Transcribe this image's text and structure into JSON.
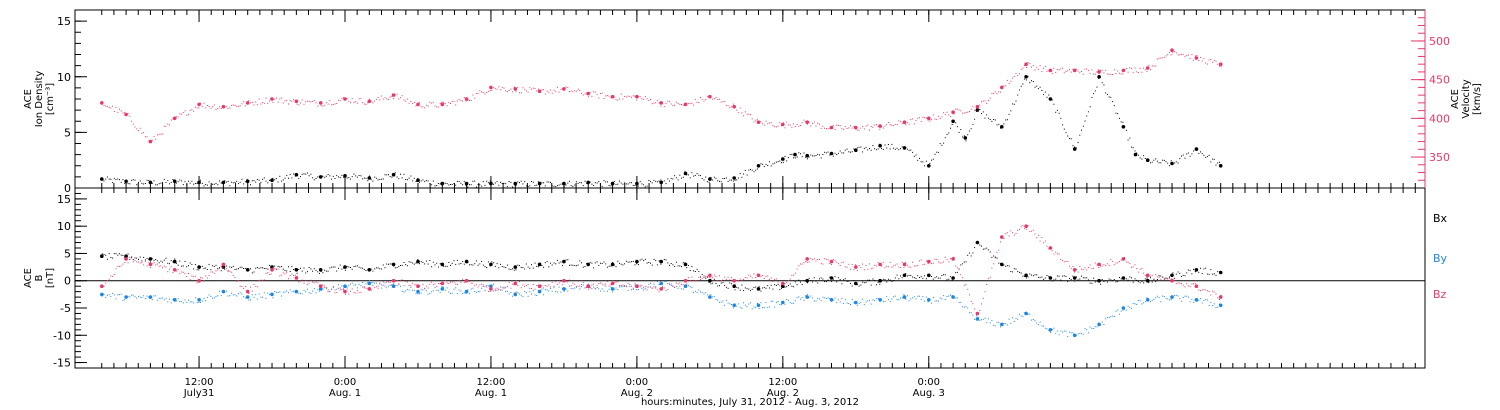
{
  "colors": {
    "black": "#000000",
    "pink": "#e8386a",
    "blue": "#1f86e0"
  },
  "chart_data": [
    {
      "type": "scatter",
      "panel": "top",
      "left_axis": {
        "label_lines": [
          "ACE",
          "Ion Density",
          "[cm⁻³]"
        ],
        "ylim": [
          0,
          16
        ],
        "ticks": [
          0,
          5,
          10,
          15
        ],
        "tick_labels": [
          "0",
          "5",
          "10",
          "15"
        ]
      },
      "right_axis": {
        "label_lines": [
          "ACE",
          "Velocity",
          "[km/s]"
        ],
        "ylim": [
          310,
          540
        ],
        "ticks": [
          350,
          400,
          450,
          500
        ],
        "tick_labels": [
          "350",
          "400",
          "450",
          "500"
        ]
      },
      "series": [
        {
          "axis": "left",
          "color": "black",
          "x": [
            0,
            2,
            4,
            6,
            8,
            10,
            12,
            14,
            16,
            18,
            20,
            22,
            24,
            26,
            28,
            30,
            32,
            34,
            36,
            38,
            40,
            42,
            44,
            46,
            48,
            50,
            52,
            54,
            56,
            57,
            58,
            60,
            62,
            64,
            66,
            68,
            70,
            71,
            72,
            74,
            76,
            78,
            80,
            82,
            84,
            85,
            86,
            88,
            90,
            92
          ],
          "y": [
            0.8,
            0.6,
            0.5,
            0.6,
            0.5,
            0.5,
            0.6,
            0.7,
            1.2,
            1.0,
            1.1,
            0.9,
            1.2,
            0.7,
            0.4,
            0.4,
            0.4,
            0.4,
            0.4,
            0.4,
            0.5,
            0.4,
            0.4,
            0.5,
            1.3,
            0.8,
            0.9,
            2.0,
            2.6,
            3.0,
            2.9,
            3.1,
            3.4,
            3.8,
            3.6,
            2.0,
            6.0,
            4.5,
            7.0,
            5.5,
            10.0,
            8.0,
            3.5,
            10.0,
            5.5,
            3.0,
            2.5,
            2.2,
            3.5,
            2.0
          ]
        },
        {
          "axis": "right",
          "color": "pink",
          "x": [
            0,
            2,
            4,
            6,
            8,
            10,
            12,
            14,
            16,
            18,
            20,
            22,
            24,
            26,
            28,
            30,
            32,
            34,
            36,
            38,
            40,
            42,
            44,
            46,
            48,
            50,
            52,
            54,
            56,
            58,
            60,
            62,
            64,
            66,
            68,
            70,
            72,
            74,
            76,
            78,
            80,
            82,
            84,
            86,
            88,
            90,
            92
          ],
          "y": [
            420,
            405,
            370,
            400,
            418,
            415,
            420,
            425,
            422,
            420,
            425,
            422,
            430,
            418,
            418,
            425,
            440,
            438,
            435,
            438,
            432,
            428,
            428,
            420,
            418,
            428,
            415,
            395,
            392,
            395,
            388,
            388,
            390,
            395,
            400,
            408,
            415,
            440,
            470,
            462,
            462,
            460,
            462,
            465,
            488,
            478,
            470
          ]
        }
      ]
    },
    {
      "type": "scatter",
      "panel": "bottom",
      "left_axis": {
        "label_lines": [
          "ACE",
          "B",
          "[nT]"
        ],
        "ylim": [
          -16,
          17
        ],
        "ticks": [
          -15,
          -10,
          -5,
          0,
          5,
          10,
          15
        ],
        "tick_labels": [
          "-15",
          "-10",
          "-5",
          "0",
          "5",
          "10",
          "15"
        ]
      },
      "legend": {
        "placement": "right",
        "entries": [
          "Bx",
          "By",
          "Bz"
        ]
      },
      "series": [
        {
          "name": "Bx",
          "color": "black",
          "x": [
            0,
            2,
            4,
            6,
            8,
            10,
            12,
            14,
            16,
            18,
            20,
            22,
            24,
            26,
            28,
            30,
            32,
            34,
            36,
            38,
            40,
            42,
            44,
            46,
            48,
            50,
            52,
            54,
            56,
            58,
            60,
            62,
            64,
            66,
            68,
            70,
            72,
            74,
            76,
            78,
            80,
            82,
            84,
            86,
            88,
            90,
            92
          ],
          "y": [
            4.5,
            4.5,
            4.0,
            3.5,
            2.5,
            2.5,
            2.0,
            2.5,
            2.0,
            2.0,
            2.5,
            2.0,
            3.0,
            3.5,
            3.0,
            3.5,
            3.0,
            2.5,
            3.0,
            3.5,
            3.0,
            3.0,
            3.5,
            3.5,
            3.0,
            0.0,
            -1.0,
            -1.5,
            -1.0,
            0.0,
            0.5,
            -0.5,
            0.0,
            1.0,
            1.0,
            0.5,
            7.0,
            3.0,
            1.0,
            0.5,
            0.5,
            0.0,
            0.5,
            0.0,
            1.0,
            2.0,
            1.5
          ]
        },
        {
          "name": "By",
          "color": "blue",
          "x": [
            0,
            2,
            4,
            6,
            8,
            10,
            12,
            14,
            16,
            18,
            20,
            22,
            24,
            26,
            28,
            30,
            32,
            34,
            36,
            38,
            40,
            42,
            44,
            46,
            48,
            50,
            52,
            54,
            56,
            58,
            60,
            62,
            64,
            66,
            68,
            70,
            72,
            74,
            76,
            78,
            80,
            82,
            84,
            86,
            88,
            90,
            92
          ],
          "y": [
            -2.5,
            -3.0,
            -3.0,
            -3.5,
            -3.5,
            -2.0,
            -3.0,
            -2.5,
            -2.0,
            -1.5,
            -1.0,
            -0.5,
            -1.0,
            -2.0,
            -1.5,
            -2.0,
            -1.0,
            -2.5,
            -2.0,
            -1.5,
            -1.0,
            -1.5,
            -1.0,
            -0.5,
            -1.0,
            -3.0,
            -4.5,
            -4.5,
            -4.0,
            -3.0,
            -3.5,
            -4.0,
            -3.5,
            -3.0,
            -3.5,
            -3.0,
            -7.0,
            -8.0,
            -6.0,
            -9.0,
            -10.0,
            -8.0,
            -5.0,
            -3.5,
            -3.0,
            -3.5,
            -4.5
          ]
        },
        {
          "name": "Bz",
          "color": "pink",
          "x": [
            0,
            2,
            4,
            6,
            8,
            10,
            12,
            14,
            16,
            18,
            20,
            22,
            24,
            26,
            28,
            30,
            32,
            34,
            36,
            38,
            40,
            42,
            44,
            46,
            48,
            50,
            52,
            54,
            56,
            58,
            60,
            62,
            64,
            66,
            68,
            70,
            72,
            74,
            76,
            78,
            80,
            82,
            84,
            86,
            88,
            90,
            92
          ],
          "y": [
            -1.0,
            4.0,
            3.0,
            2.0,
            0.0,
            3.0,
            -2.0,
            2.0,
            0.5,
            -1.0,
            -2.0,
            -1.5,
            0.0,
            -1.0,
            -0.5,
            0.0,
            -1.5,
            -0.5,
            -1.0,
            0.0,
            -1.0,
            -0.5,
            -1.0,
            -1.5,
            0.0,
            1.0,
            0.0,
            1.0,
            -0.5,
            4.0,
            3.5,
            2.5,
            3.0,
            3.0,
            3.5,
            4.0,
            -6.0,
            8.0,
            10.0,
            6.0,
            2.0,
            3.0,
            4.0,
            1.0,
            0.0,
            -1.0,
            -3.0
          ]
        }
      ]
    }
  ],
  "x_axis": {
    "xlim": [
      -2.2,
      108.8
    ],
    "ticks": [
      {
        "x": 8,
        "line1": "12:00",
        "line2": "July31"
      },
      {
        "x": 20,
        "line1": "0:00",
        "line2": "Aug. 1"
      },
      {
        "x": 32,
        "line1": "12:00",
        "line2": "Aug. 1"
      },
      {
        "x": 44,
        "line1": "0:00",
        "line2": "Aug. 2"
      },
      {
        "x": 56,
        "line1": "12:00",
        "line2": "Aug. 2"
      },
      {
        "x": 68,
        "line1": "0:00",
        "line2": "Aug. 3"
      }
    ],
    "label": "hours:minutes, July 31, 2012 - Aug. 3, 2012"
  }
}
